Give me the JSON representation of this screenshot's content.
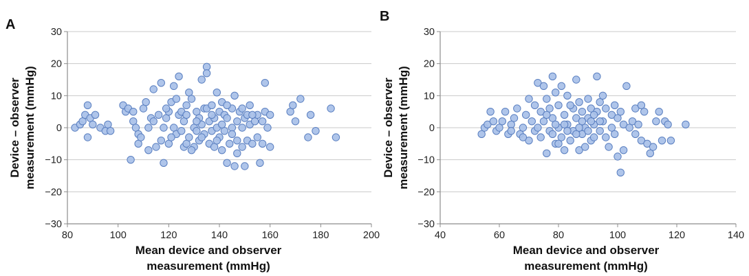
{
  "colors": {
    "marker_fill": "#a8c0e8",
    "marker_stroke": "#5a7fc0",
    "grid": "#c8c8c8",
    "axis": "#8c8c8c"
  },
  "chart_data": [
    {
      "type": "scatter",
      "panel_label": "A",
      "title": "",
      "xlabel_lines": [
        "Mean device and observer",
        "measurement (mmHg)"
      ],
      "ylabel_lines": [
        "Device – observer",
        "measurement (mmHg)"
      ],
      "xlim": [
        80,
        200
      ],
      "ylim": [
        -30,
        30
      ],
      "xticks": [
        "80",
        "100",
        "120",
        "140",
        "160",
        "180",
        "200"
      ],
      "yticks": [
        "−30",
        "−20",
        "−10",
        "0",
        "10",
        "20",
        "30"
      ],
      "grid": "horizontal",
      "points": [
        [
          83,
          0
        ],
        [
          85,
          1
        ],
        [
          86,
          2
        ],
        [
          87,
          4
        ],
        [
          88,
          7
        ],
        [
          88,
          -3
        ],
        [
          89,
          3
        ],
        [
          90,
          1
        ],
        [
          91,
          4
        ],
        [
          93,
          0
        ],
        [
          95,
          -1
        ],
        [
          96,
          1
        ],
        [
          97,
          -1
        ],
        [
          102,
          7
        ],
        [
          103,
          5
        ],
        [
          104,
          6
        ],
        [
          105,
          -10
        ],
        [
          106,
          5
        ],
        [
          106,
          2
        ],
        [
          107,
          0
        ],
        [
          108,
          -5
        ],
        [
          108,
          -2
        ],
        [
          109,
          -3
        ],
        [
          110,
          6
        ],
        [
          111,
          8
        ],
        [
          112,
          0
        ],
        [
          113,
          3
        ],
        [
          114,
          12
        ],
        [
          115,
          -6
        ],
        [
          116,
          4
        ],
        [
          117,
          14
        ],
        [
          118,
          0
        ],
        [
          118,
          -11
        ],
        [
          119,
          3
        ],
        [
          120,
          5
        ],
        [
          120,
          -5
        ],
        [
          121,
          8
        ],
        [
          122,
          13
        ],
        [
          122,
          0
        ],
        [
          123,
          -2
        ],
        [
          124,
          16
        ],
        [
          124,
          4
        ],
        [
          125,
          5
        ],
        [
          126,
          -6
        ],
        [
          126,
          2
        ],
        [
          127,
          7
        ],
        [
          127,
          -5
        ],
        [
          128,
          11
        ],
        [
          128,
          -3
        ],
        [
          129,
          9
        ],
        [
          130,
          0
        ],
        [
          130,
          -6
        ],
        [
          131,
          5
        ],
        [
          131,
          -1
        ],
        [
          132,
          3
        ],
        [
          132,
          -4
        ],
        [
          133,
          15
        ],
        [
          133,
          1
        ],
        [
          134,
          6
        ],
        [
          134,
          -2
        ],
        [
          135,
          19
        ],
        [
          135,
          17
        ],
        [
          135,
          6
        ],
        [
          136,
          -5
        ],
        [
          136,
          2
        ],
        [
          137,
          7
        ],
        [
          137,
          -1
        ],
        [
          138,
          3
        ],
        [
          138,
          -6
        ],
        [
          139,
          11
        ],
        [
          139,
          0
        ],
        [
          140,
          5
        ],
        [
          140,
          -3
        ],
        [
          141,
          8
        ],
        [
          141,
          -7
        ],
        [
          142,
          4
        ],
        [
          142,
          -1
        ],
        [
          143,
          3
        ],
        [
          143,
          -11
        ],
        [
          144,
          -5
        ],
        [
          145,
          6
        ],
        [
          145,
          0
        ],
        [
          146,
          10
        ],
        [
          146,
          -12
        ],
        [
          147,
          2
        ],
        [
          147,
          -8
        ],
        [
          148,
          5
        ],
        [
          149,
          0
        ],
        [
          149,
          -6
        ],
        [
          150,
          -12
        ],
        [
          150,
          3
        ],
        [
          151,
          4
        ],
        [
          151,
          -4
        ],
        [
          152,
          7
        ],
        [
          152,
          1
        ],
        [
          153,
          -5
        ],
        [
          154,
          2
        ],
        [
          155,
          4
        ],
        [
          155,
          -3
        ],
        [
          156,
          -11
        ],
        [
          157,
          -5
        ],
        [
          158,
          14
        ],
        [
          158,
          5
        ],
        [
          159,
          0
        ],
        [
          160,
          4
        ],
        [
          160,
          -6
        ],
        [
          168,
          5
        ],
        [
          169,
          7
        ],
        [
          170,
          2
        ],
        [
          172,
          9
        ],
        [
          175,
          -3
        ],
        [
          176,
          4
        ],
        [
          178,
          -1
        ],
        [
          184,
          6
        ],
        [
          186,
          -3
        ],
        [
          114,
          2
        ],
        [
          117,
          -4
        ],
        [
          119,
          6
        ],
        [
          121,
          -3
        ],
        [
          123,
          9
        ],
        [
          125,
          -1
        ],
        [
          127,
          4
        ],
        [
          129,
          -7
        ],
        [
          131,
          2
        ],
        [
          133,
          -3
        ],
        [
          137,
          4
        ],
        [
          139,
          -4
        ],
        [
          141,
          1
        ],
        [
          143,
          7
        ],
        [
          145,
          -2
        ],
        [
          147,
          -4
        ],
        [
          149,
          6
        ],
        [
          153,
          4
        ],
        [
          157,
          2
        ],
        [
          112,
          -7
        ]
      ]
    },
    {
      "type": "scatter",
      "panel_label": "B",
      "title": "",
      "xlabel_lines": [
        "Mean device and observer",
        "measurement (mmHg)"
      ],
      "ylabel_lines": [
        "Device – observer",
        "measurement (mmHg)"
      ],
      "xlim": [
        40,
        140
      ],
      "ylim": [
        -30,
        30
      ],
      "xticks": [
        "40",
        "60",
        "80",
        "100",
        "120",
        "140"
      ],
      "yticks": [
        "−30",
        "−20",
        "−10",
        "0",
        "10",
        "20",
        "30"
      ],
      "grid": "horizontal",
      "points": [
        [
          54,
          -2
        ],
        [
          55,
          0
        ],
        [
          56,
          1
        ],
        [
          57,
          5
        ],
        [
          58,
          2
        ],
        [
          59,
          -1
        ],
        [
          60,
          0
        ],
        [
          61,
          2
        ],
        [
          62,
          5
        ],
        [
          63,
          -2
        ],
        [
          64,
          1
        ],
        [
          65,
          3
        ],
        [
          66,
          6
        ],
        [
          67,
          -2
        ],
        [
          68,
          0
        ],
        [
          69,
          4
        ],
        [
          70,
          9
        ],
        [
          70,
          -4
        ],
        [
          71,
          2
        ],
        [
          72,
          7
        ],
        [
          72,
          -1
        ],
        [
          73,
          14
        ],
        [
          74,
          5
        ],
        [
          74,
          -3
        ],
        [
          75,
          13
        ],
        [
          75,
          2
        ],
        [
          76,
          -8
        ],
        [
          76,
          9
        ],
        [
          77,
          6
        ],
        [
          77,
          -1
        ],
        [
          78,
          16
        ],
        [
          78,
          3
        ],
        [
          79,
          11
        ],
        [
          79,
          -5
        ],
        [
          80,
          7
        ],
        [
          80,
          0
        ],
        [
          81,
          13
        ],
        [
          81,
          -3
        ],
        [
          82,
          4
        ],
        [
          82,
          -7
        ],
        [
          83,
          10
        ],
        [
          83,
          1
        ],
        [
          84,
          -4
        ],
        [
          85,
          6
        ],
        [
          85,
          -1
        ],
        [
          86,
          15
        ],
        [
          86,
          3
        ],
        [
          87,
          -7
        ],
        [
          87,
          8
        ],
        [
          88,
          5
        ],
        [
          88,
          -2
        ],
        [
          89,
          0
        ],
        [
          89,
          -6
        ],
        [
          90,
          9
        ],
        [
          90,
          3
        ],
        [
          91,
          -4
        ],
        [
          91,
          6
        ],
        [
          92,
          1
        ],
        [
          92,
          -3
        ],
        [
          93,
          16
        ],
        [
          93,
          5
        ],
        [
          94,
          8
        ],
        [
          94,
          -1
        ],
        [
          95,
          10
        ],
        [
          95,
          2
        ],
        [
          96,
          -3
        ],
        [
          96,
          6
        ],
        [
          97,
          -6
        ],
        [
          98,
          4
        ],
        [
          98,
          0
        ],
        [
          99,
          7
        ],
        [
          99,
          -2
        ],
        [
          100,
          -9
        ],
        [
          100,
          3
        ],
        [
          101,
          -14
        ],
        [
          101,
          5
        ],
        [
          102,
          -7
        ],
        [
          102,
          1
        ],
        [
          103,
          13
        ],
        [
          104,
          0
        ],
        [
          105,
          2
        ],
        [
          106,
          6
        ],
        [
          106,
          -2
        ],
        [
          107,
          1
        ],
        [
          108,
          7
        ],
        [
          108,
          -4
        ],
        [
          109,
          5
        ],
        [
          110,
          -5
        ],
        [
          111,
          -8
        ],
        [
          112,
          -6
        ],
        [
          113,
          2
        ],
        [
          114,
          5
        ],
        [
          115,
          -4
        ],
        [
          116,
          2
        ],
        [
          117,
          1
        ],
        [
          118,
          -4
        ],
        [
          123,
          1
        ],
        [
          76,
          4
        ],
        [
          78,
          -2
        ],
        [
          80,
          -5
        ],
        [
          82,
          1
        ],
        [
          84,
          7
        ],
        [
          86,
          -2
        ],
        [
          88,
          2
        ],
        [
          90,
          -1
        ],
        [
          92,
          4
        ],
        [
          94,
          2
        ],
        [
          79,
          1
        ],
        [
          83,
          -1
        ],
        [
          87,
          0
        ],
        [
          91,
          2
        ],
        [
          73,
          0
        ],
        [
          68,
          -3
        ],
        [
          64,
          -1
        ]
      ]
    }
  ]
}
